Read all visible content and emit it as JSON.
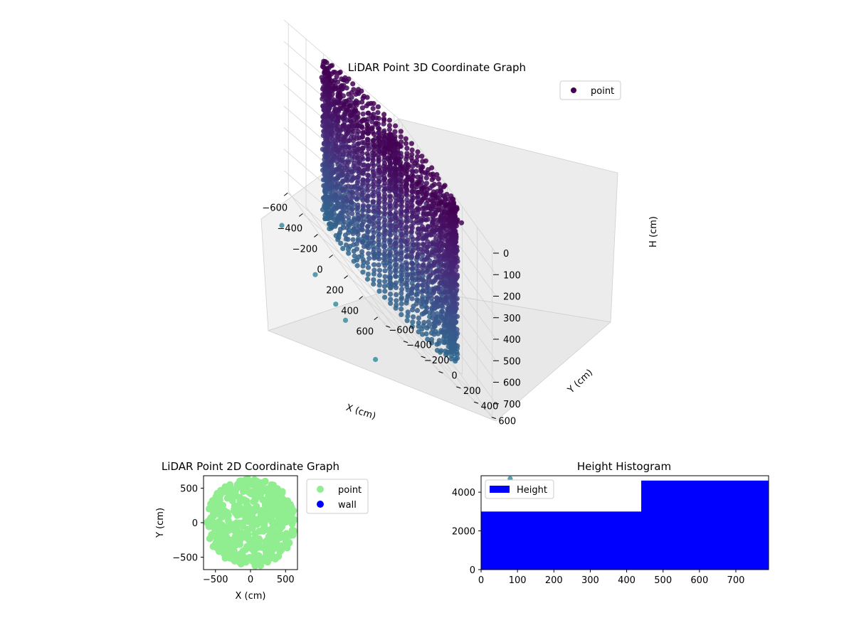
{
  "chart_data": [
    {
      "type": "scatter",
      "projection": "3d",
      "title": "LiDAR Point 3D Coordinate Graph",
      "xlabel": "X (cm)",
      "ylabel": "Y (cm)",
      "zlabel": "H (cm)",
      "x_ticks": [
        "−600",
        "−400",
        "−200",
        "0",
        "200",
        "400",
        "600"
      ],
      "y_ticks": [
        "−600",
        "−400",
        "−200",
        "0",
        "200",
        "400",
        "600"
      ],
      "z_ticks": [
        "0",
        "100",
        "200",
        "300",
        "400",
        "500",
        "600",
        "700"
      ],
      "xlim": [
        -650,
        650
      ],
      "ylim": [
        -650,
        650
      ],
      "zlim": [
        0,
        780
      ],
      "z_inverted": true,
      "grid": true,
      "legend": {
        "position": "top-right",
        "entries": [
          {
            "label": "point",
            "color": "#440154"
          }
        ]
      },
      "colormap": "viridis",
      "shape": "cylindrical wall of points, radius about 560 cm, heights 0–700 cm, plus scattered outliers"
    },
    {
      "type": "scatter",
      "title": "LiDAR Point 2D Coordinate Graph",
      "xlabel": "X (cm)",
      "ylabel": "Y (cm)",
      "x_ticks": [
        "−500",
        "0",
        "500"
      ],
      "y_ticks": [
        "−500",
        "0",
        "500"
      ],
      "xlim": [
        -670,
        670
      ],
      "ylim": [
        -680,
        680
      ],
      "legend": {
        "position": "outside-right",
        "entries": [
          {
            "label": "point",
            "color": "#90ee90"
          },
          {
            "label": "wall",
            "color": "#0000ff"
          }
        ]
      }
    },
    {
      "type": "bar",
      "subtype": "histogram",
      "title": "Height Histogram",
      "x_ticks": [
        "0",
        "100",
        "200",
        "300",
        "400",
        "500",
        "600",
        "700"
      ],
      "y_ticks": [
        "0",
        "2000",
        "4000"
      ],
      "xlim": [
        0,
        790
      ],
      "ylim": [
        0,
        4850
      ],
      "bins": [
        [
          0,
          440
        ],
        [
          440,
          790
        ]
      ],
      "values": [
        3000,
        4600
      ],
      "legend": {
        "position": "top-left",
        "entries": [
          {
            "label": "Height",
            "color": "#0000ff"
          }
        ]
      }
    }
  ]
}
